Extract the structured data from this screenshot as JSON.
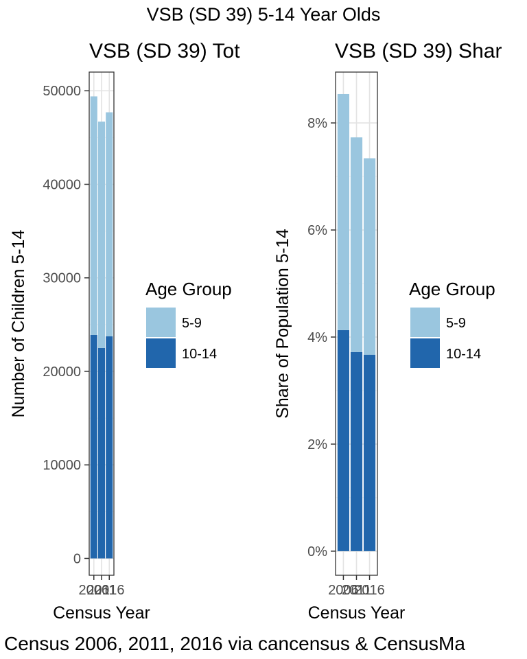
{
  "main_title": "VSB (SD 39) 5-14 Year Olds",
  "caption": "Census 2006, 2011, 2016 via cancensus & CensusMa",
  "colors": {
    "age_5_9": "#9ac6df",
    "age_10_14": "#2166ac"
  },
  "chart_data": [
    {
      "type": "bar",
      "stacked": true,
      "title": "VSB (SD 39) Tot",
      "xlabel": "Census Year",
      "ylabel": "Number of Children 5-14",
      "categories": [
        "2006",
        "2011",
        "2016"
      ],
      "ylim": [
        -1800,
        52000
      ],
      "yticks": [
        0,
        10000,
        20000,
        30000,
        40000,
        50000
      ],
      "ytick_labels": [
        "0",
        "10000",
        "20000",
        "30000",
        "40000",
        "50000"
      ],
      "xtick_labels": [
        "2006",
        "2011",
        "2016"
      ],
      "series": [
        {
          "name": "10-14",
          "values": [
            23900,
            22500,
            23750
          ]
        },
        {
          "name": "5-9",
          "values": [
            25500,
            24200,
            23950
          ]
        }
      ],
      "legend_title": "Age Group",
      "legend_position": "right",
      "grid": true
    },
    {
      "type": "bar",
      "stacked": true,
      "title": "VSB (SD 39) Shar",
      "xlabel": "Census Year",
      "ylabel": "Share of Population 5-14",
      "categories": [
        "2006",
        "2011",
        "2016"
      ],
      "ylim": [
        -0.0045,
        0.0895
      ],
      "yticks": [
        0,
        0.02,
        0.04,
        0.06,
        0.08
      ],
      "ytick_labels": [
        "0%",
        "2%",
        "4%",
        "6%",
        "8%"
      ],
      "xtick_labels": [
        "2006",
        "2011",
        "2016"
      ],
      "series": [
        {
          "name": "10-14",
          "values": [
            0.0413,
            0.0372,
            0.0367
          ]
        },
        {
          "name": "5-9",
          "values": [
            0.0441,
            0.0401,
            0.0367
          ]
        }
      ],
      "legend_title": "Age Group",
      "legend_position": "right",
      "grid": true
    }
  ]
}
